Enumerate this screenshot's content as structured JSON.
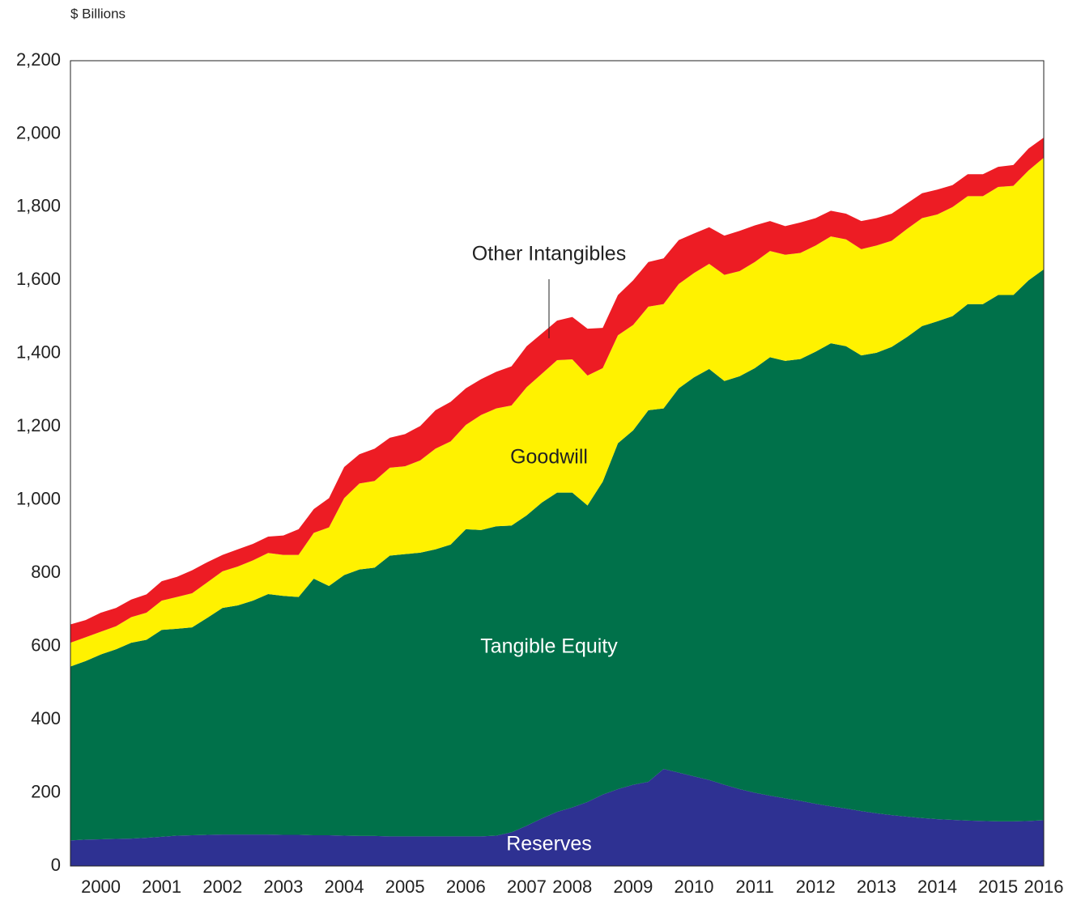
{
  "chart_data": {
    "type": "stacked_area",
    "ylabel": "$ Billions",
    "categories": [
      null,
      null,
      "2000",
      null,
      null,
      null,
      "2001",
      null,
      null,
      null,
      "2002",
      null,
      null,
      null,
      "2003",
      null,
      null,
      null,
      "2004",
      null,
      null,
      null,
      "2005",
      null,
      null,
      null,
      "2006",
      null,
      null,
      null,
      "2007",
      null,
      null,
      "2008",
      null,
      null,
      null,
      "2009",
      null,
      null,
      null,
      "2010",
      null,
      null,
      null,
      "2011",
      null,
      null,
      null,
      "2012",
      null,
      null,
      null,
      "2013",
      null,
      null,
      null,
      "2014",
      null,
      null,
      null,
      "2015",
      null,
      null,
      "2016"
    ],
    "series": [
      {
        "name": "Reserves",
        "color": "#2e3192",
        "values": [
          70,
          72,
          73,
          74,
          75,
          77,
          80,
          83,
          84,
          85,
          86,
          86,
          86,
          86,
          85,
          85,
          84,
          84,
          83,
          82,
          82,
          81,
          81,
          81,
          81,
          81,
          81,
          81,
          83,
          92,
          110,
          130,
          148,
          160,
          175,
          195,
          210,
          222,
          230,
          265,
          255,
          245,
          235,
          222,
          210,
          200,
          192,
          185,
          178,
          170,
          163,
          157,
          150,
          144,
          139,
          135,
          131,
          128,
          126,
          124,
          123,
          122,
          122,
          123,
          125
        ]
      },
      {
        "name": "Tangible Equity",
        "color": "#00714a",
        "values": [
          475,
          488,
          505,
          518,
          535,
          541,
          565,
          565,
          568,
          593,
          619,
          626,
          639,
          657,
          653,
          650,
          701,
          681,
          712,
          728,
          733,
          767,
          771,
          775,
          784,
          797,
          839,
          837,
          845,
          838,
          848,
          863,
          872,
          860,
          810,
          855,
          945,
          968,
          1015,
          985,
          1050,
          1090,
          1123,
          1103,
          1128,
          1160,
          1198,
          1195,
          1207,
          1235,
          1265,
          1263,
          1245,
          1258,
          1279,
          1310,
          1344,
          1360,
          1376,
          1411,
          1412,
          1438,
          1438,
          1477,
          1505
        ]
      },
      {
        "name": "Goodwill",
        "color": "#fff200",
        "values": [
          65,
          65,
          62,
          63,
          70,
          74,
          80,
          87,
          93,
          97,
          100,
          106,
          110,
          112,
          112,
          115,
          125,
          160,
          210,
          235,
          237,
          240,
          240,
          252,
          275,
          282,
          285,
          314,
          322,
          328,
          350,
          352,
          362,
          364,
          355,
          310,
          295,
          288,
          283,
          285,
          285,
          285,
          287,
          290,
          287,
          290,
          290,
          290,
          290,
          290,
          292,
          292,
          290,
          293,
          290,
          295,
          295,
          292,
          298,
          295,
          295,
          295,
          298,
          300,
          305
        ]
      },
      {
        "name": "Other Intangibles",
        "color": "#ed1c24",
        "values": [
          50,
          47,
          52,
          50,
          48,
          50,
          53,
          55,
          63,
          55,
          45,
          47,
          45,
          45,
          53,
          70,
          65,
          80,
          85,
          80,
          88,
          82,
          88,
          94,
          105,
          108,
          100,
          98,
          100,
          107,
          112,
          110,
          108,
          116,
          128,
          110,
          110,
          122,
          122,
          125,
          120,
          108,
          100,
          107,
          110,
          100,
          82,
          78,
          83,
          75,
          70,
          70,
          77,
          75,
          74,
          70,
          68,
          68,
          60,
          60,
          60,
          55,
          57,
          60,
          55
        ]
      }
    ],
    "ylim": [
      0,
      2200
    ],
    "yticks": [
      0,
      200,
      400,
      600,
      800,
      {
        "value": 1000,
        "label": "1,000"
      },
      {
        "value": 1200,
        "label": "1,200"
      },
      {
        "value": 1400,
        "label": "1,400"
      },
      {
        "value": 1600,
        "label": "1,600"
      },
      {
        "value": 1800,
        "label": "1,800"
      },
      {
        "value": 2000,
        "label": "2,000"
      },
      {
        "value": 2200,
        "label": "2,200"
      }
    ],
    "grid": false
  }
}
